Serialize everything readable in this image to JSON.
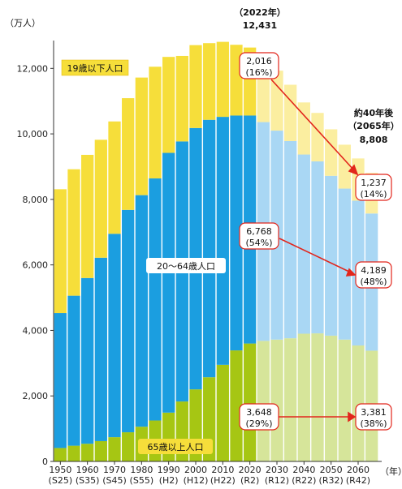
{
  "chart_data": {
    "type": "stacked-bar",
    "unit_label": "（万人）",
    "x_unit": "（年）",
    "ylim": [
      0,
      12800
    ],
    "y_ticks": [
      0,
      2000,
      4000,
      6000,
      8000,
      10000,
      12000
    ],
    "y_tick_labels": [
      "0",
      "2,000",
      "4,000",
      "6,000",
      "8,000",
      "10,000",
      "12,000"
    ],
    "years": [
      1950,
      1955,
      1960,
      1965,
      1970,
      1975,
      1980,
      1985,
      1990,
      1995,
      2000,
      2005,
      2010,
      2015,
      2020,
      2025,
      2030,
      2035,
      2040,
      2045,
      2050,
      2055,
      2060,
      2065
    ],
    "x_tick_labels": [
      {
        "year": "1950",
        "era": "(S25)"
      },
      {
        "year": "1960",
        "era": "(S35)"
      },
      {
        "year": "1970",
        "era": "(S45)"
      },
      {
        "year": "1980",
        "era": "(S55)"
      },
      {
        "year": "1990",
        "era": "(H2)"
      },
      {
        "year": "2000",
        "era": "(H12)"
      },
      {
        "year": "2010",
        "era": "(H22)"
      },
      {
        "year": "2020",
        "era": "(R2)"
      },
      {
        "year": "2030",
        "era": "(R12)"
      },
      {
        "year": "2040",
        "era": "(R22)"
      },
      {
        "year": "2050",
        "era": "(R32)"
      },
      {
        "year": "2060",
        "era": "(R42)"
      }
    ],
    "projection_from": 2025,
    "series": [
      {
        "name": "65歳以上人口",
        "color": "#a6c613",
        "proj_color": "#d6e59a",
        "values": [
          410,
          480,
          540,
          620,
          740,
          890,
          1060,
          1250,
          1490,
          1830,
          2200,
          2570,
          2950,
          3390,
          3600,
          3680,
          3720,
          3760,
          3900,
          3910,
          3840,
          3720,
          3540,
          3381
        ]
      },
      {
        "name": "20～64歳人口",
        "color": "#1b9ee0",
        "proj_color": "#a9d7f4",
        "values": [
          4120,
          4580,
          5060,
          5600,
          6210,
          6790,
          7070,
          7390,
          7930,
          7940,
          7980,
          7860,
          7570,
          7170,
          6960,
          6680,
          6380,
          6020,
          5470,
          5250,
          4880,
          4610,
          4420,
          4189
        ]
      },
      {
        "name": "19歳以下人口",
        "color": "#f6de3a",
        "proj_color": "#fbeea0",
        "values": [
          3780,
          3860,
          3760,
          3600,
          3430,
          3410,
          3590,
          3410,
          2930,
          2610,
          2530,
          2340,
          2290,
          2160,
          2076,
          1990,
          1830,
          1720,
          1590,
          1480,
          1420,
          1340,
          1290,
          1237
        ]
      }
    ],
    "annotations": {
      "peak_year": "（2022年）",
      "peak_value": "12,431",
      "proj_title_1": "約40年後",
      "proj_title_2": "（2065年）",
      "proj_value": "8,808",
      "young_2022": "2,016",
      "young_2022_pct": "(16%)",
      "young_2065": "1,237",
      "young_2065_pct": "(14%)",
      "work_2022": "6,768",
      "work_2022_pct": "(54%)",
      "work_2065": "4,189",
      "work_2065_pct": "(48%)",
      "old_2022": "3,648",
      "old_2022_pct": "(29%)",
      "old_2065": "3,381",
      "old_2065_pct": "(38%)"
    },
    "colors": {
      "arrow": "#e2261c",
      "axis": "#333333"
    }
  }
}
